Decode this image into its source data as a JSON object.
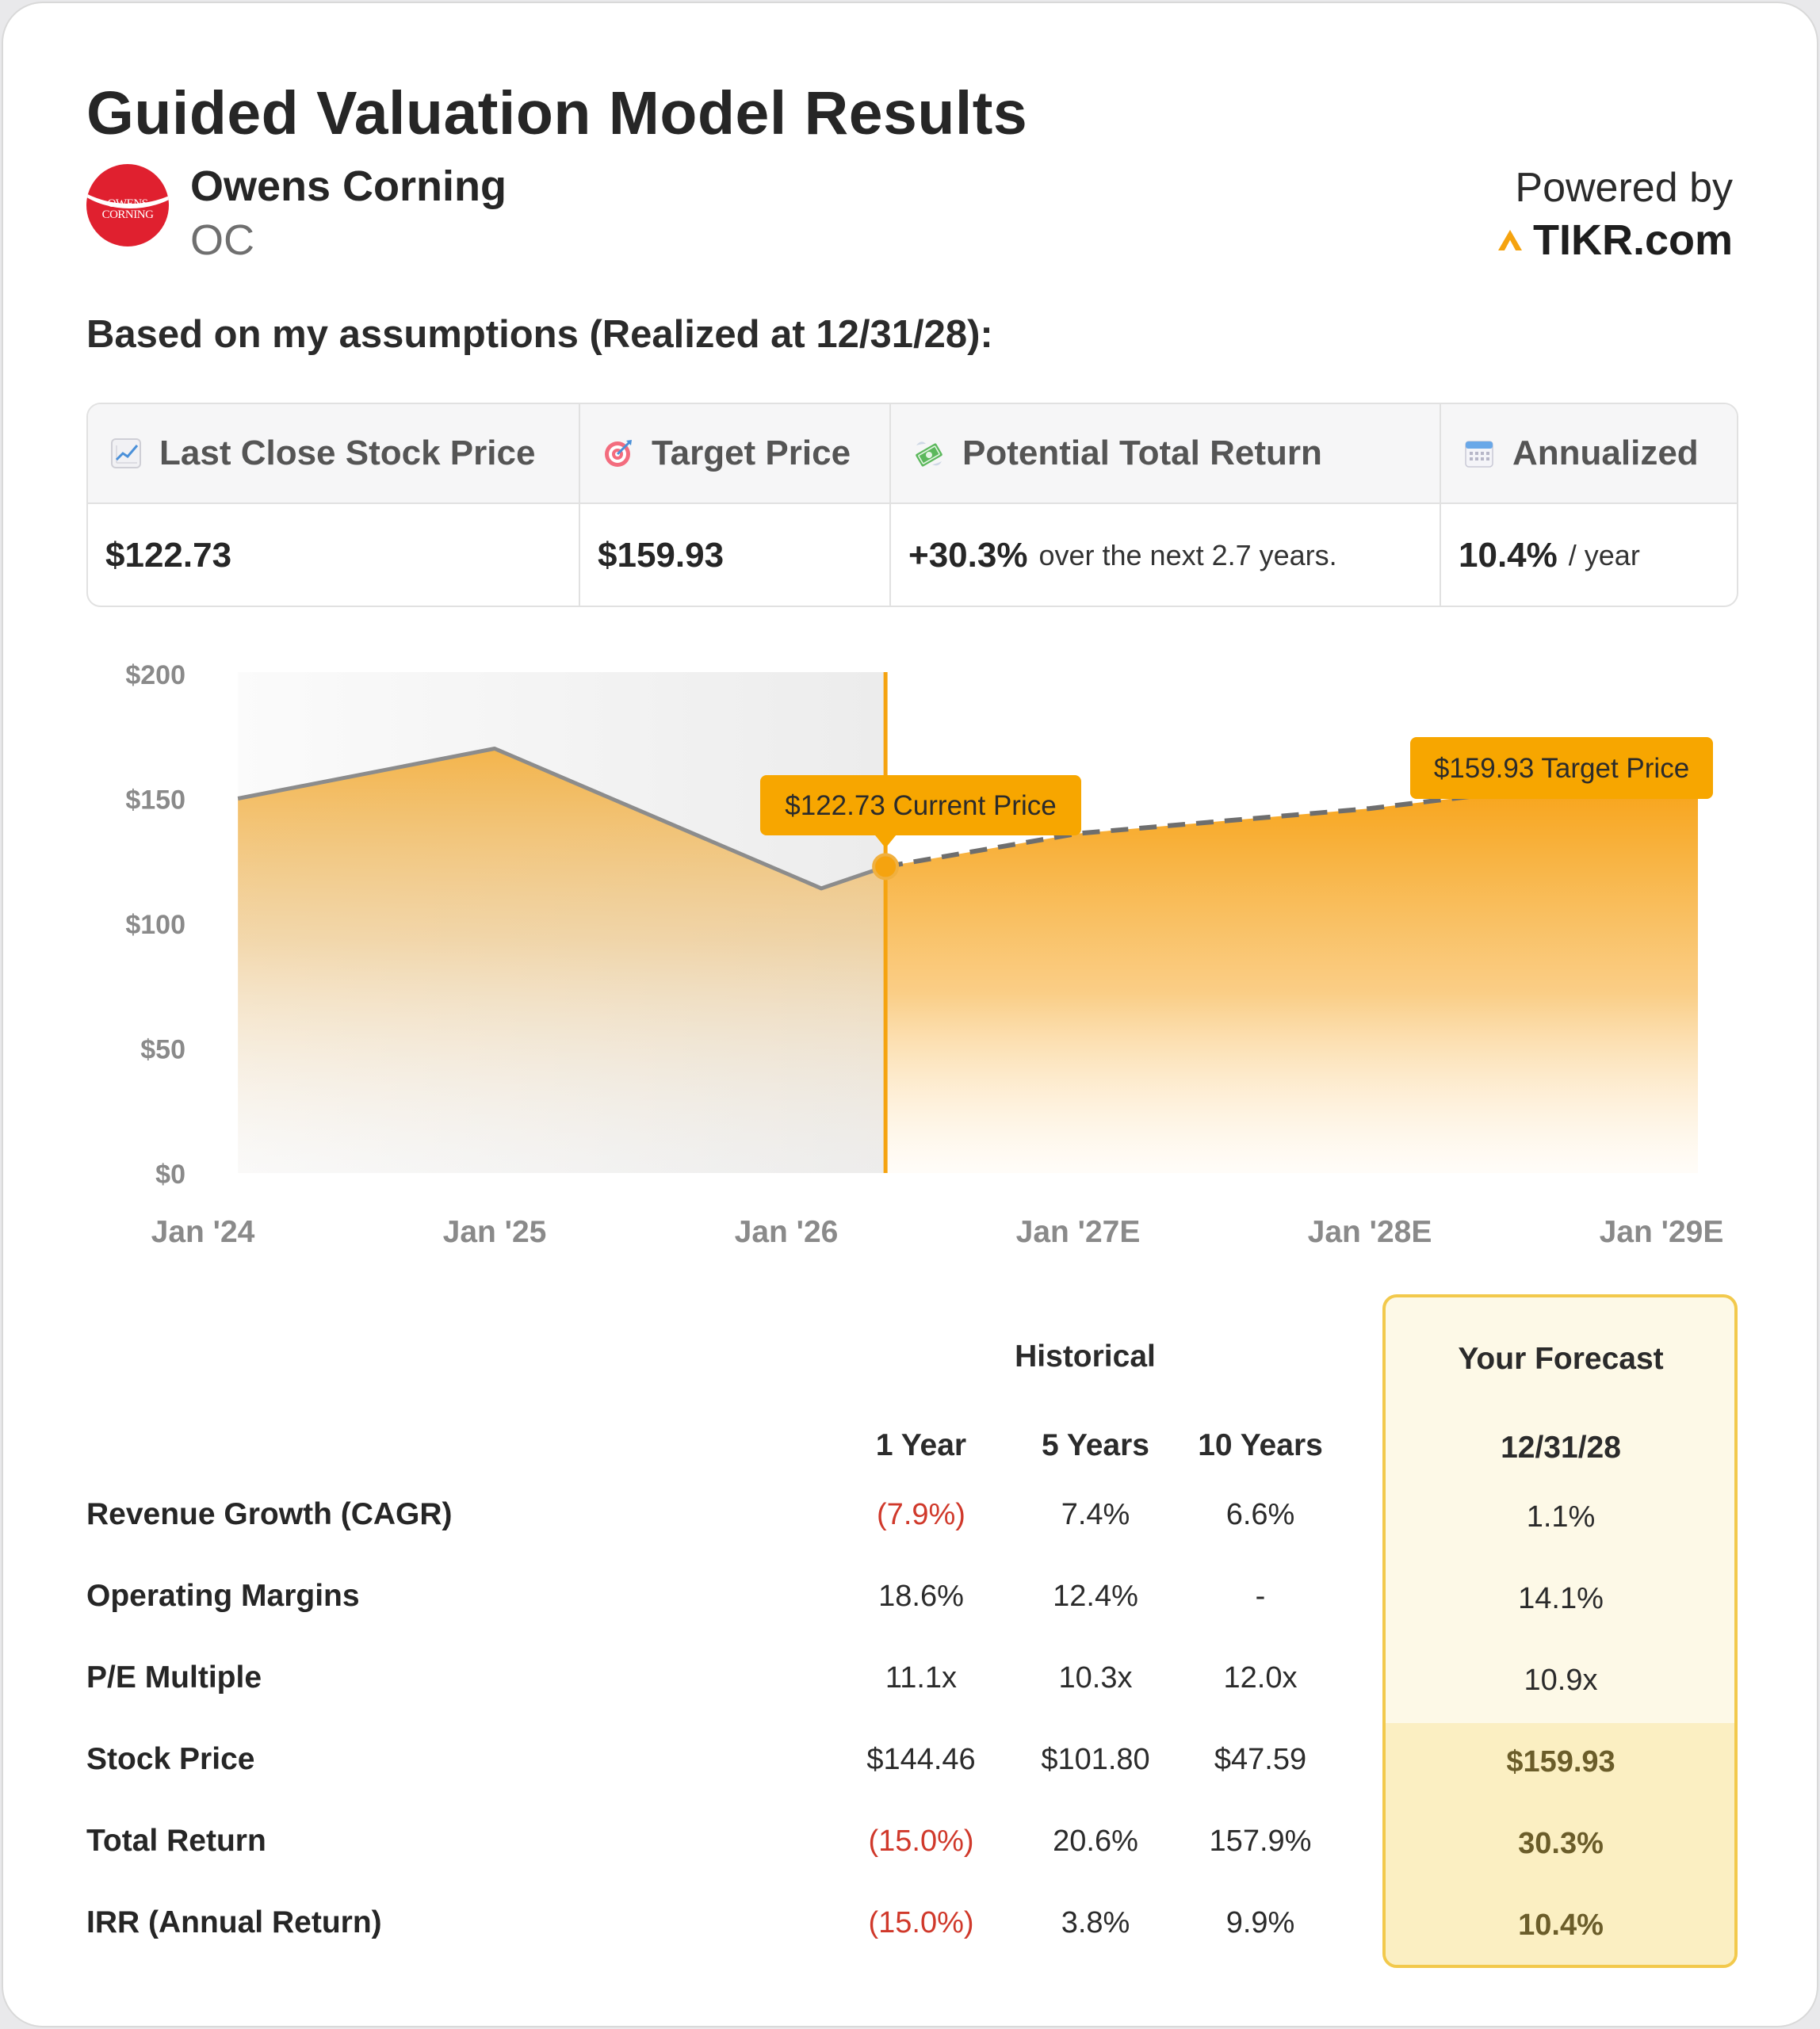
{
  "title": "Guided Valuation Model Results",
  "company": {
    "name": "Owens Corning",
    "ticker": "OC",
    "logo_text": [
      "OWENS",
      "CORNING"
    ]
  },
  "powered_by": {
    "label": "Powered by",
    "brand": "TIKR.com"
  },
  "subtitle": "Based on my assumptions (Realized at 12/31/28):",
  "summary": {
    "last_close": {
      "icon": "chart-increasing-icon",
      "label": "Last Close Stock Price",
      "value": "$122.73"
    },
    "target": {
      "icon": "target-icon",
      "label": "Target Price",
      "value": "$159.93"
    },
    "potential": {
      "icon": "money-with-wings-icon",
      "label": "Potential Total Return",
      "value": "+30.3%",
      "note": "over the next 2.7 years."
    },
    "annualized": {
      "icon": "calendar-icon",
      "label": "Annualized",
      "value": "10.4%",
      "note": "/ year"
    }
  },
  "chart_data": {
    "type": "area",
    "y_ticks": [
      "$200",
      "$150",
      "$100",
      "$50",
      "$0"
    ],
    "ylim": [
      0,
      200
    ],
    "x_ticks": [
      "Jan '24",
      "Jan '25",
      "Jan '26",
      "Jan '27E",
      "Jan '28E",
      "Jan '29E"
    ],
    "x_tick_values": [
      2024.0,
      2025.0,
      2026.0,
      2027.0,
      2028.0,
      2029.0
    ],
    "historical": {
      "x": [
        2024.12,
        2025.0,
        2026.12,
        2026.34
      ],
      "y": [
        150,
        170,
        114,
        122.73
      ]
    },
    "forecast": {
      "x": [
        2026.34,
        2027.0,
        2028.0,
        2028.99
      ],
      "y": [
        122.73,
        136,
        146,
        159.93
      ]
    },
    "current_price_label": "$122.73 Current Price",
    "target_price_label": "$159.93 Target Price",
    "colors": {
      "accent": "#f5a30f",
      "label_bg": "#f7a600",
      "history_band": "#eeeeee",
      "history_line": "#8c8c8c",
      "forecast_line": "#6e6e6e"
    }
  },
  "metrics": {
    "historical_label": "Historical",
    "forecast_label": "Your Forecast",
    "forecast_date": "12/31/28",
    "columns": [
      "1 Year",
      "5 Years",
      "10 Years"
    ],
    "rows": [
      {
        "label": "Revenue Growth (CAGR)",
        "values": [
          "(7.9%)",
          "7.4%",
          "6.6%"
        ],
        "forecast": "1.1%"
      },
      {
        "label": "Operating Margins",
        "values": [
          "18.6%",
          "12.4%",
          "-"
        ],
        "forecast": "14.1%"
      },
      {
        "label": "P/E Multiple",
        "values": [
          "11.1x",
          "10.3x",
          "12.0x"
        ],
        "forecast": "10.9x"
      },
      {
        "label": "Stock Price",
        "values": [
          "$144.46",
          "$101.80",
          "$47.59"
        ],
        "forecast": "$159.93"
      },
      {
        "label": "Total Return",
        "values": [
          "(15.0%)",
          "20.6%",
          "157.9%"
        ],
        "forecast": "30.3%"
      },
      {
        "label": "IRR (Annual Return)",
        "values": [
          "(15.0%)",
          "3.8%",
          "9.9%"
        ],
        "forecast": "10.4%"
      }
    ]
  }
}
